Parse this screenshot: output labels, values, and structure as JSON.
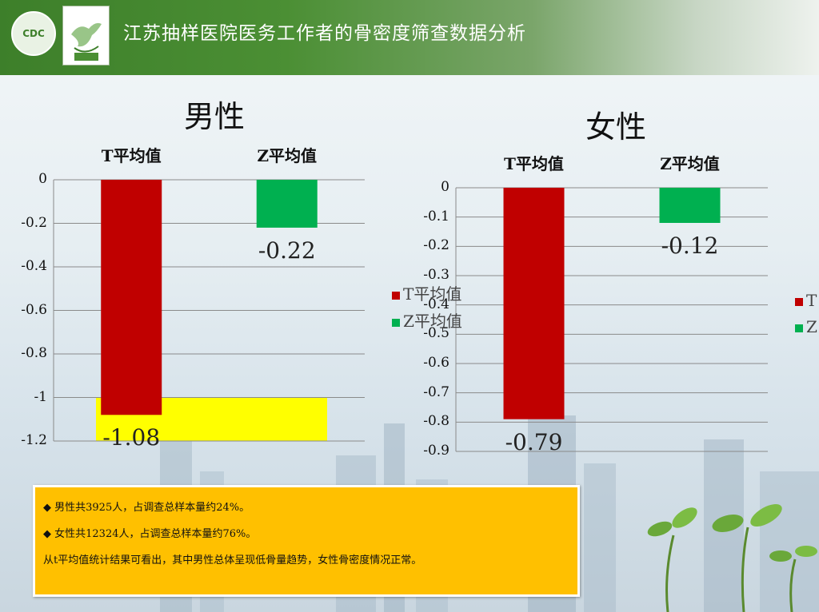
{
  "header": {
    "title": "江苏抽样医院医务工作者的骨密度筛查数据分析",
    "logo_text": "CDC"
  },
  "chart_data": [
    {
      "type": "bar",
      "title": "男性",
      "categories": [
        "T平均值",
        "Z平均值"
      ],
      "values": [
        -1.08,
        -0.22
      ],
      "value_labels": [
        "-1.08",
        "-0.22"
      ],
      "colors": [
        "#c00000",
        "#00b050"
      ],
      "ylim": [
        -1.2,
        0
      ],
      "yticks": [
        0,
        -0.2,
        -0.4,
        -0.6,
        -0.8,
        -1,
        -1.2
      ],
      "ytick_labels": [
        "0",
        "-0.2",
        "-0.4",
        "-0.6",
        "-0.8",
        "-1",
        "-1.2"
      ],
      "grid": true,
      "highlight_range": [
        -1.2,
        -1.0
      ],
      "highlight_color": "#ffff00",
      "legend": [
        "T平均值",
        "Z平均值"
      ]
    },
    {
      "type": "bar",
      "title": "女性",
      "categories": [
        "T平均值",
        "Z平均值"
      ],
      "values": [
        -0.79,
        -0.12
      ],
      "value_labels": [
        "-0.79",
        "-0.12"
      ],
      "colors": [
        "#c00000",
        "#00b050"
      ],
      "ylim": [
        -0.9,
        0
      ],
      "yticks": [
        0,
        -0.1,
        -0.2,
        -0.3,
        -0.4,
        -0.5,
        -0.6,
        -0.7,
        -0.8,
        -0.9
      ],
      "ytick_labels": [
        "0",
        "-0.1",
        "-0.2",
        "-0.3",
        "-0.4",
        "-0.5",
        "-0.6",
        "-0.7",
        "-0.8",
        "-0.9"
      ],
      "grid": true,
      "legend": [
        "T平均值",
        "Z平均值"
      ]
    }
  ],
  "legend_right": [
    "T",
    "Z"
  ],
  "notes": {
    "line1": "◆  男性共3925人，占调查总样本量约24%。",
    "line2": "◆  女性共12324人，占调查总样本量约76%。",
    "line3": "从t平均值统计结果可看出，其中男性总体呈现低骨量趋势，女性骨密度情况正常。"
  }
}
